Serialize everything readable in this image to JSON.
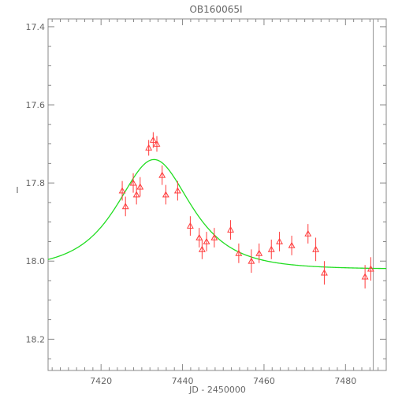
{
  "chart_data": {
    "type": "scatter",
    "title": "OB160065I",
    "xlabel": "JD - 2450000",
    "ylabel": "I",
    "xlim": [
      7407,
      7490
    ],
    "ylim": [
      18.28,
      17.38
    ],
    "y_inverted": true,
    "x_ticks": [
      7420,
      7440,
      7460,
      7480
    ],
    "x_tick_labels": [
      "7420",
      "7440",
      "7460",
      "7480"
    ],
    "y_ticks": [
      17.4,
      17.6,
      17.8,
      18.0,
      18.2
    ],
    "y_tick_labels": [
      "17.4",
      "17.6",
      "17.8",
      "18.0",
      "18.2"
    ],
    "grid": false,
    "series": [
      {
        "kind": "points_with_errorbars",
        "marker": "open-triangle",
        "color": "#ff3b3b",
        "points": [
          {
            "x": 7425.2,
            "y": 17.82,
            "err": 0.025
          },
          {
            "x": 7426.0,
            "y": 17.86,
            "err": 0.025
          },
          {
            "x": 7427.9,
            "y": 17.8,
            "err": 0.025
          },
          {
            "x": 7428.7,
            "y": 17.83,
            "err": 0.025
          },
          {
            "x": 7429.6,
            "y": 17.81,
            "err": 0.025
          },
          {
            "x": 7431.7,
            "y": 17.71,
            "err": 0.02
          },
          {
            "x": 7432.8,
            "y": 17.69,
            "err": 0.02
          },
          {
            "x": 7433.7,
            "y": 17.7,
            "err": 0.02
          },
          {
            "x": 7435.0,
            "y": 17.78,
            "err": 0.025
          },
          {
            "x": 7435.9,
            "y": 17.83,
            "err": 0.025
          },
          {
            "x": 7438.8,
            "y": 17.82,
            "err": 0.025
          },
          {
            "x": 7441.9,
            "y": 17.91,
            "err": 0.025
          },
          {
            "x": 7444.1,
            "y": 17.94,
            "err": 0.025
          },
          {
            "x": 7444.8,
            "y": 17.97,
            "err": 0.025
          },
          {
            "x": 7445.9,
            "y": 17.95,
            "err": 0.025
          },
          {
            "x": 7447.8,
            "y": 17.94,
            "err": 0.025
          },
          {
            "x": 7451.8,
            "y": 17.92,
            "err": 0.025
          },
          {
            "x": 7453.8,
            "y": 17.98,
            "err": 0.025
          },
          {
            "x": 7456.9,
            "y": 18.0,
            "err": 0.03
          },
          {
            "x": 7458.8,
            "y": 17.98,
            "err": 0.025
          },
          {
            "x": 7461.8,
            "y": 17.97,
            "err": 0.025
          },
          {
            "x": 7463.8,
            "y": 17.95,
            "err": 0.025
          },
          {
            "x": 7466.8,
            "y": 17.96,
            "err": 0.025
          },
          {
            "x": 7470.8,
            "y": 17.93,
            "err": 0.025
          },
          {
            "x": 7472.7,
            "y": 17.97,
            "err": 0.03
          },
          {
            "x": 7474.8,
            "y": 18.03,
            "err": 0.03
          },
          {
            "x": 7484.8,
            "y": 18.04,
            "err": 0.03
          },
          {
            "x": 7486.2,
            "y": 18.02,
            "err": 0.03
          }
        ]
      },
      {
        "kind": "model_curve",
        "color": "#22dd22",
        "model": {
          "t0": 7433.0,
          "baseline": 18.021,
          "peak_mag": 17.74,
          "tE": 10.4
        }
      }
    ],
    "reference_line": {
      "x": 7486.8,
      "color": "#999999"
    }
  }
}
